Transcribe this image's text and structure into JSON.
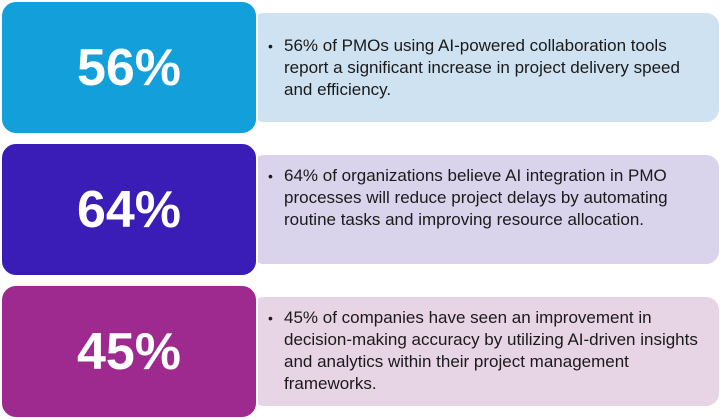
{
  "items": [
    {
      "stat": "56%",
      "text": "56% of PMOs using AI-powered collaboration tools report a significant increase in project delivery speed and efficiency."
    },
    {
      "stat": "64%",
      "text": "64% of organizations believe AI integration in PMO processes will reduce project delays by automating routine tasks and improving resource allocation."
    },
    {
      "stat": "45%",
      "text": "45% of companies have seen an improvement in decision-making accuracy by utilizing AI-driven insights and analytics within their project management frameworks."
    }
  ]
}
